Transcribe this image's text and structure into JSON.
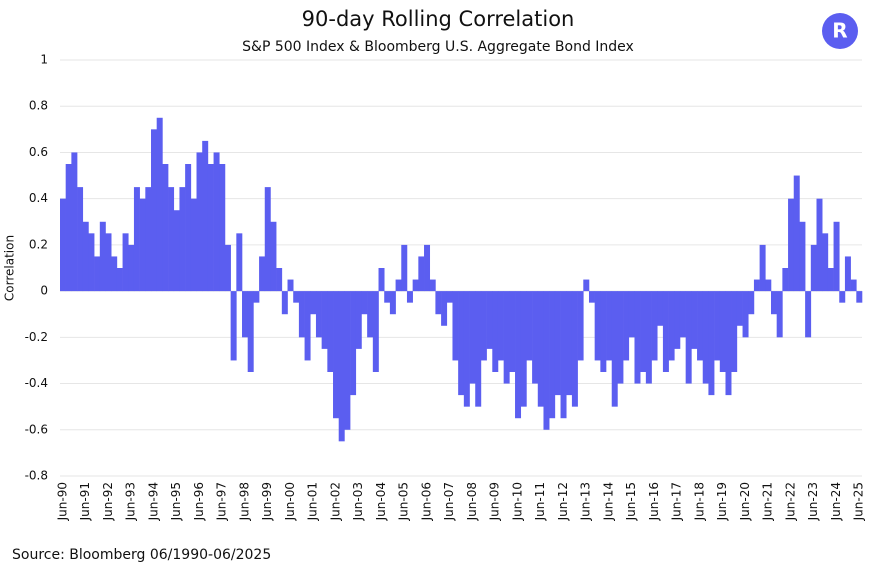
{
  "chart_data": {
    "type": "bar",
    "title": "90-day Rolling Correlation",
    "subtitle": "S&P 500 Index & Bloomberg U.S. Aggregate Bond Index",
    "y_label": "Correlation",
    "source": "Source: Bloomberg 06/1990-06/2025",
    "logo": "R",
    "color": "#5b5ef0",
    "grid": true,
    "ylim": [
      -0.8,
      1
    ],
    "yticks": [
      -0.8,
      -0.6,
      -0.4,
      -0.2,
      0,
      0.2,
      0.4,
      0.6,
      0.8,
      1
    ],
    "categories": [
      "Jun-90",
      null,
      null,
      null,
      "Jun-91",
      null,
      null,
      null,
      "Jun-92",
      null,
      null,
      null,
      "Jun-93",
      null,
      null,
      null,
      "Jun-94",
      null,
      null,
      null,
      "Jun-95",
      null,
      null,
      null,
      "Jun-96",
      null,
      null,
      null,
      "Jun-97",
      null,
      null,
      null,
      "Jun-98",
      null,
      null,
      null,
      "Jun-99",
      null,
      null,
      null,
      "Jun-00",
      null,
      null,
      null,
      "Jun-01",
      null,
      null,
      null,
      "Jun-02",
      null,
      null,
      null,
      "Jun-03",
      null,
      null,
      null,
      "Jun-04",
      null,
      null,
      null,
      "Jun-05",
      null,
      null,
      null,
      "Jun-06",
      null,
      null,
      null,
      "Jun-07",
      null,
      null,
      null,
      "Jun-08",
      null,
      null,
      null,
      "Jun-09",
      null,
      null,
      null,
      "Jun-10",
      null,
      null,
      null,
      "Jun-11",
      null,
      null,
      null,
      "Jun-12",
      null,
      null,
      null,
      "Jun-13",
      null,
      null,
      null,
      "Jun-14",
      null,
      null,
      null,
      "Jun-15",
      null,
      null,
      null,
      "Jun-16",
      null,
      null,
      null,
      "Jun-17",
      null,
      null,
      null,
      "Jun-18",
      null,
      null,
      null,
      "Jun-19",
      null,
      null,
      null,
      "Jun-20",
      null,
      null,
      null,
      "Jun-21",
      null,
      null,
      null,
      "Jun-22",
      null,
      null,
      null,
      "Jun-23",
      null,
      null,
      null,
      "Jun-24",
      null,
      null,
      null,
      "Jun-25"
    ],
    "values": [
      0.4,
      0.55,
      0.6,
      0.45,
      0.3,
      0.25,
      0.15,
      0.3,
      0.25,
      0.15,
      0.1,
      0.25,
      0.2,
      0.45,
      0.4,
      0.45,
      0.7,
      0.75,
      0.55,
      0.45,
      0.35,
      0.45,
      0.55,
      0.4,
      0.6,
      0.65,
      0.55,
      0.6,
      0.55,
      0.2,
      -0.3,
      0.25,
      -0.2,
      -0.35,
      -0.05,
      0.15,
      0.45,
      0.3,
      0.1,
      -0.1,
      0.05,
      -0.05,
      -0.2,
      -0.3,
      -0.1,
      -0.2,
      -0.25,
      -0.35,
      -0.55,
      -0.65,
      -0.6,
      -0.45,
      -0.25,
      -0.1,
      -0.2,
      -0.35,
      0.1,
      -0.05,
      -0.1,
      0.05,
      0.2,
      -0.05,
      0.05,
      0.15,
      0.2,
      0.05,
      -0.1,
      -0.15,
      -0.05,
      -0.3,
      -0.45,
      -0.5,
      -0.4,
      -0.5,
      -0.3,
      -0.25,
      -0.35,
      -0.3,
      -0.4,
      -0.35,
      -0.55,
      -0.5,
      -0.3,
      -0.4,
      -0.5,
      -0.6,
      -0.55,
      -0.45,
      -0.55,
      -0.45,
      -0.5,
      -0.3,
      0.05,
      -0.05,
      -0.3,
      -0.35,
      -0.3,
      -0.5,
      -0.4,
      -0.3,
      -0.2,
      -0.4,
      -0.35,
      -0.4,
      -0.3,
      -0.15,
      -0.35,
      -0.3,
      -0.25,
      -0.2,
      -0.4,
      -0.25,
      -0.3,
      -0.4,
      -0.45,
      -0.3,
      -0.35,
      -0.45,
      -0.35,
      -0.15,
      -0.2,
      -0.1,
      0.05,
      0.2,
      0.05,
      -0.1,
      -0.2,
      0.1,
      0.4,
      0.5,
      0.3,
      -0.2,
      0.2,
      0.4,
      0.25,
      0.1,
      0.3,
      -0.05,
      0.15,
      0.05,
      -0.05
    ]
  }
}
